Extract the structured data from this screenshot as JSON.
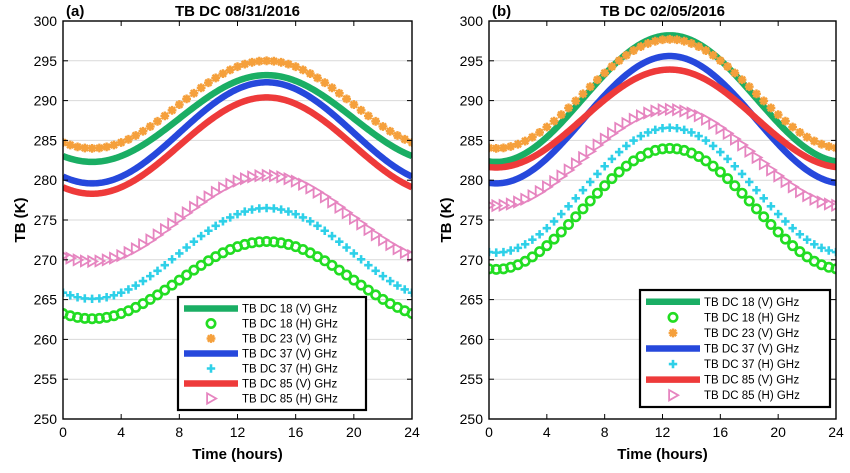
{
  "chart_data": [
    {
      "type": "line",
      "panel_label": "(a)",
      "title": "TB DC 08/31/2016",
      "xlabel": "Time (hours)",
      "ylabel": "TB (K)",
      "xlim": [
        0,
        24
      ],
      "ylim": [
        250,
        300
      ],
      "xticks": [
        0,
        4,
        8,
        12,
        16,
        20,
        24
      ],
      "yticks": [
        250,
        255,
        260,
        265,
        270,
        275,
        280,
        285,
        290,
        295,
        300
      ],
      "grid": "horizontal",
      "legend_position": "bottom-right",
      "series": [
        {
          "name": "TB DC 18 (V) GHz",
          "style": "line",
          "color": "#1aae64",
          "params": {
            "min": 282.3,
            "max": 293.2,
            "tmin": 2,
            "tmax": 14
          }
        },
        {
          "name": "TB DC 18 (H) GHz",
          "style": "circle",
          "color": "#22dd22",
          "params": {
            "min": 262.6,
            "max": 272.3,
            "tmin": 2,
            "tmax": 14
          }
        },
        {
          "name": "TB DC 23 (V) GHz",
          "style": "star",
          "color": "#f5a03c",
          "params": {
            "min": 284.0,
            "max": 295.0,
            "tmin": 2,
            "tmax": 14
          }
        },
        {
          "name": "TB DC 37 (V) GHz",
          "style": "line",
          "color": "#2648dc",
          "params": {
            "min": 279.6,
            "max": 292.3,
            "tmin": 2,
            "tmax": 14
          }
        },
        {
          "name": "TB DC 37 (H) GHz",
          "style": "plus",
          "color": "#2ed0e8",
          "params": {
            "min": 265.1,
            "max": 276.5,
            "tmin": 2,
            "tmax": 14
          }
        },
        {
          "name": "TB DC 85 (V) GHz",
          "style": "line",
          "color": "#ee3a3a",
          "params": {
            "min": 278.3,
            "max": 290.4,
            "tmin": 2,
            "tmax": 14
          }
        },
        {
          "name": "TB DC 85 (H) GHz",
          "style": "triangle",
          "color": "#e685c0",
          "params": {
            "min": 269.8,
            "max": 280.6,
            "tmin": 2,
            "tmax": 14
          }
        }
      ]
    },
    {
      "type": "line",
      "panel_label": "(b)",
      "title": "TB DC 02/05/2016",
      "xlabel": "Time (hours)",
      "ylabel": "TB (K)",
      "xlim": [
        0,
        24
      ],
      "ylim": [
        250,
        300
      ],
      "xticks": [
        0,
        4,
        8,
        12,
        16,
        20,
        24
      ],
      "yticks": [
        250,
        255,
        260,
        265,
        270,
        275,
        280,
        285,
        290,
        295,
        300
      ],
      "grid": "horizontal",
      "legend_position": "bottom-right",
      "series": [
        {
          "name": "TB DC 18 (V) GHz",
          "style": "line",
          "color": "#1aae64",
          "params": {
            "min": 282.3,
            "max": 298.2,
            "tmin": 0.5,
            "tmax": 12.5
          }
        },
        {
          "name": "TB DC 18 (H) GHz",
          "style": "circle",
          "color": "#22dd22",
          "params": {
            "min": 268.8,
            "max": 284.0,
            "tmin": 0.5,
            "tmax": 12.5
          }
        },
        {
          "name": "TB DC 23 (V) GHz",
          "style": "star",
          "color": "#f5a03c",
          "params": {
            "min": 284.0,
            "max": 297.7,
            "tmin": 0.5,
            "tmax": 12.5
          }
        },
        {
          "name": "TB DC 37 (V) GHz",
          "style": "line",
          "color": "#2648dc",
          "params": {
            "min": 279.6,
            "max": 295.6,
            "tmin": 0.5,
            "tmax": 12.5
          }
        },
        {
          "name": "TB DC 37 (H) GHz",
          "style": "plus",
          "color": "#2ed0e8",
          "params": {
            "min": 270.9,
            "max": 286.6,
            "tmin": 0.5,
            "tmax": 12.5
          }
        },
        {
          "name": "TB DC 85 (V) GHz",
          "style": "line",
          "color": "#ee3a3a",
          "params": {
            "min": 281.6,
            "max": 293.9,
            "tmin": 0.5,
            "tmax": 12.5
          }
        },
        {
          "name": "TB DC 85 (H) GHz",
          "style": "triangle",
          "color": "#e685c0",
          "params": {
            "min": 276.8,
            "max": 288.9,
            "tmin": 0.5,
            "tmax": 12.5
          }
        }
      ]
    }
  ]
}
